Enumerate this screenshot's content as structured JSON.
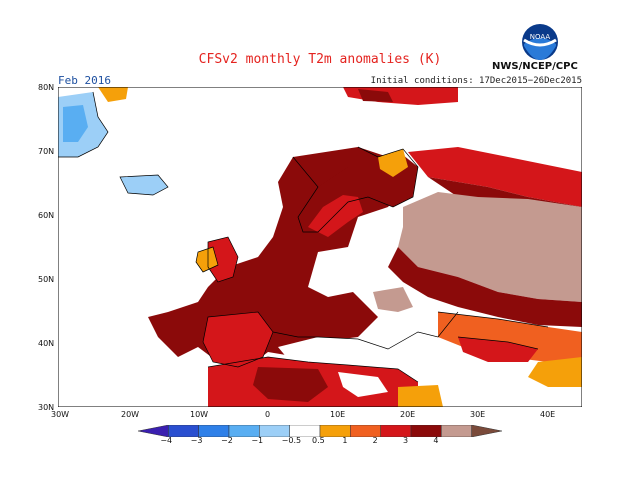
{
  "title": "CFSv2 monthly T2m anomalies (K)",
  "month": "Feb 2016",
  "initial_conditions": "Initial conditions: 17Dec2015−26Dec2015",
  "agency": "NWS/NCEP/CPC",
  "logo_text": "NOAA",
  "lat_labels": [
    "80N",
    "70N",
    "60N",
    "50N",
    "40N",
    "30N"
  ],
  "lon_labels": [
    "30W",
    "20W",
    "10W",
    "0",
    "10E",
    "20E",
    "30E",
    "40E"
  ],
  "colorbar": {
    "labels": [
      "−4",
      "−3",
      "−2",
      "−1",
      "−0.5",
      "0.5",
      "1",
      "2",
      "3",
      "4"
    ],
    "colors": [
      "#3a1fb0",
      "#2a4fd0",
      "#2f80e8",
      "#59aef2",
      "#9ccff7",
      "#ffffff",
      "#f5a00a",
      "#f06020",
      "#d4161a",
      "#8b0a0a",
      "#c49a90",
      "#7a4a3a"
    ]
  },
  "colors": {
    "dark_red": "#8b0a0a",
    "red": "#d4161a",
    "orange_red": "#f06020",
    "orange": "#f5a00a",
    "brown": "#c49a90",
    "light_blue": "#9ccff7",
    "mid_blue": "#59aef2"
  }
}
